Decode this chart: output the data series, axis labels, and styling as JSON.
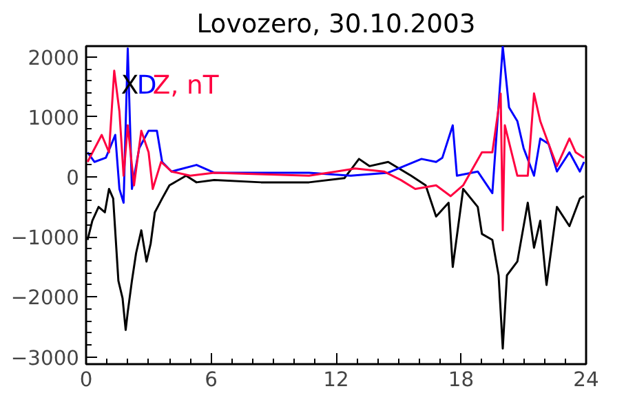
{
  "chart_data": {
    "type": "line",
    "title": "Lovozero, 30.10.2003",
    "xlim": [
      0,
      24
    ],
    "xticks": [
      0,
      6,
      12,
      18,
      24
    ],
    "ylim": [
      -3120,
      2180
    ],
    "yticks": [
      -3000,
      -2000,
      -1000,
      0,
      1000,
      2000
    ],
    "grid": false,
    "legend": "top left",
    "line_style": "solid",
    "marker": "none",
    "series": [
      {
        "name": "X",
        "color": "#000000",
        "x": [
          0.07,
          0.3,
          0.6,
          0.9,
          1.1,
          1.3,
          1.55,
          1.75,
          1.9,
          2.0,
          2.2,
          2.4,
          2.65,
          2.9,
          3.1,
          3.3,
          3.65,
          4.0,
          4.8,
          5.3,
          6.15,
          8.4,
          10.7,
          12.4,
          13.1,
          13.6,
          14.5,
          15.6,
          16.3,
          16.8,
          17.4,
          17.6,
          18.1,
          18.8,
          19.0,
          19.5,
          19.8,
          20.0,
          20.2,
          20.7,
          21.2,
          21.5,
          21.8,
          22.1,
          22.6,
          23.2,
          23.7,
          23.9
        ],
        "values": [
          -1050,
          -730,
          -500,
          -590,
          -200,
          -360,
          -1730,
          -2020,
          -2550,
          -2250,
          -1730,
          -1270,
          -890,
          -1410,
          -1110,
          -590,
          -360,
          -140,
          20,
          -90,
          -50,
          -90,
          -90,
          -20,
          300,
          180,
          250,
          20,
          -140,
          -660,
          -430,
          -1500,
          -200,
          -500,
          -950,
          -1050,
          -1640,
          -2860,
          -1640,
          -1410,
          -430,
          -1180,
          -730,
          -1800,
          -500,
          -820,
          -360,
          -320
        ]
      },
      {
        "name": "D",
        "color": "#0000ff",
        "x": [
          0.07,
          0.4,
          0.95,
          1.4,
          1.6,
          1.8,
          2.0,
          2.2,
          2.55,
          3.0,
          3.4,
          3.65,
          4.1,
          5.3,
          6.15,
          10.7,
          12.7,
          14.5,
          16.1,
          16.8,
          17.1,
          17.6,
          17.8,
          18.8,
          19.5,
          20.0,
          20.3,
          20.7,
          21.0,
          21.5,
          21.8,
          22.2,
          22.6,
          23.2,
          23.7,
          23.9
        ],
        "values": [
          410,
          250,
          320,
          700,
          -200,
          -430,
          2140,
          -200,
          480,
          770,
          770,
          250,
          90,
          200,
          70,
          70,
          20,
          70,
          300,
          250,
          320,
          860,
          20,
          90,
          -270,
          2170,
          1160,
          930,
          480,
          20,
          640,
          550,
          90,
          410,
          90,
          250
        ]
      },
      {
        "name": "Z, nT",
        "color": "#ff0040",
        "x": [
          0.07,
          0.75,
          1.1,
          1.35,
          1.6,
          1.8,
          2.0,
          2.3,
          2.65,
          3.0,
          3.2,
          3.6,
          4.1,
          5.0,
          6.15,
          10.7,
          12.0,
          12.9,
          14.3,
          15.1,
          15.8,
          16.8,
          17.5,
          18.1,
          19.0,
          19.5,
          19.9,
          20.0,
          20.1,
          20.7,
          21.2,
          21.5,
          21.8,
          22.2,
          22.6,
          23.2,
          23.5,
          23.9
        ],
        "values": [
          250,
          700,
          410,
          1770,
          1090,
          20,
          860,
          -140,
          770,
          410,
          -200,
          250,
          90,
          20,
          70,
          20,
          90,
          140,
          90,
          -50,
          -200,
          -140,
          -320,
          -140,
          410,
          410,
          1390,
          -890,
          860,
          20,
          20,
          1390,
          930,
          550,
          180,
          640,
          410,
          320
        ]
      }
    ]
  }
}
